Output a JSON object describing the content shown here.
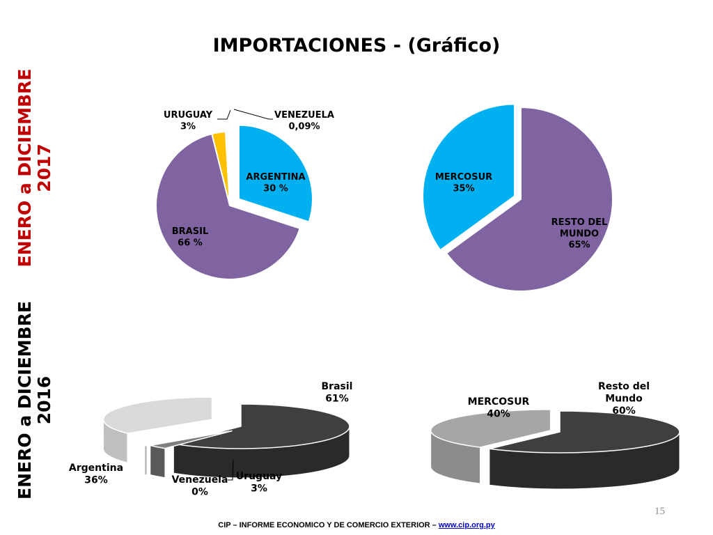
{
  "slide": {
    "title": "IMPORTACIONES - (Gráfico)",
    "side_label_2017": "ENERO a DICIEMBRE 2017",
    "side_label_2016": "ENERO a DICIEMBRE 2016",
    "footer_text": "CIP – INFORME ECONOMICO Y DE COMERCIO EXTERIOR – ",
    "footer_url": "www.cip.org.py",
    "page_number": "15"
  },
  "colors": {
    "title": "#000000",
    "side_label_2017": "#c00000",
    "side_label_2016": "#000000",
    "footer_url": "#0000cc",
    "argentina_2017": "#00b0f0",
    "brasil_2017": "#8064a2",
    "uruguay_2017": "#ffc000",
    "venezuela_2017": "#ffffff",
    "mercosur_2017": "#00b0f0",
    "resto_2017": "#8064a2",
    "pie_3d_dark": "#3f3f3f",
    "pie_3d_mid": "#7f7f7f",
    "pie_3d_light": "#d9d9d9",
    "pie_3d_gray": "#a6a6a6"
  },
  "chart_data": [
    {
      "type": "pie",
      "period": "ENERO a DICIEMBRE 2017",
      "slices": [
        {
          "name": "ARGENTINA",
          "value": 30,
          "label": "30 %",
          "color": "#00b0f0",
          "exploded": true
        },
        {
          "name": "BRASIL",
          "value": 66,
          "label": "66 %",
          "color": "#8064a2"
        },
        {
          "name": "URUGUAY",
          "value": 3,
          "label": "3%",
          "color": "#ffc000"
        },
        {
          "name": "VENEZUELA",
          "value": 0.09,
          "label": "0,09%",
          "color": "#ffffff"
        }
      ]
    },
    {
      "type": "pie",
      "period": "ENERO a DICIEMBRE 2017",
      "slices": [
        {
          "name": "MERCOSUR",
          "value": 35,
          "label": "35%",
          "color": "#00b0f0",
          "exploded": true
        },
        {
          "name": "RESTO DEL MUNDO",
          "value": 65,
          "label": "65%",
          "color": "#8064a2"
        }
      ]
    },
    {
      "type": "pie",
      "style": "3d",
      "period": "ENERO a DICIEMBRE 2016",
      "slices": [
        {
          "name": "Brasil",
          "value": 61,
          "label": "61%",
          "color": "#3f3f3f"
        },
        {
          "name": "Uruguay",
          "value": 3,
          "label": "3%",
          "color": "#7f7f7f"
        },
        {
          "name": "Venezuela",
          "value": 0,
          "label": "0%",
          "color": "#ffffff"
        },
        {
          "name": "Argentina",
          "value": 36,
          "label": "36%",
          "color": "#d9d9d9"
        }
      ]
    },
    {
      "type": "pie",
      "style": "3d",
      "period": "ENERO a DICIEMBRE 2016",
      "slices": [
        {
          "name": "Resto del Mundo",
          "value": 60,
          "label": "60%",
          "color": "#3f3f3f"
        },
        {
          "name": "MERCOSUR",
          "value": 40,
          "label": "40%",
          "color": "#a6a6a6"
        }
      ]
    }
  ]
}
